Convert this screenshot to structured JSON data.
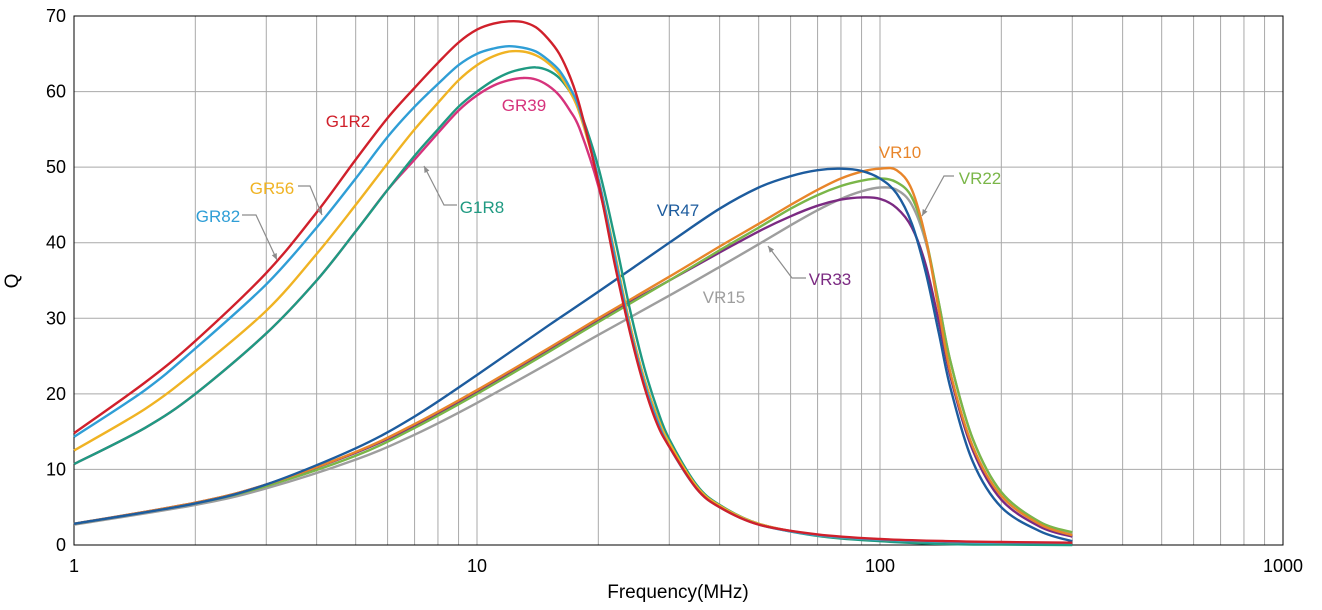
{
  "chart_data": {
    "type": "line",
    "xlabel": "Frequency(MHz)",
    "ylabel": "Q",
    "x_scale": "log",
    "xlim": [
      1,
      1000
    ],
    "ylim": [
      0,
      70
    ],
    "x_ticks": [
      1,
      10,
      100,
      1000
    ],
    "x_tick_labels": [
      "1",
      "10",
      "100",
      "1000"
    ],
    "y_ticks": [
      0,
      10,
      20,
      30,
      40,
      50,
      60,
      70
    ],
    "y_tick_labels": [
      "0",
      "10",
      "20",
      "30",
      "40",
      "50",
      "60",
      "70"
    ],
    "grid": true,
    "series": [
      {
        "name": "G1R2",
        "color": "#d0202b",
        "x": [
          1,
          1.5,
          2,
          3,
          4,
          5,
          6,
          7,
          8,
          9,
          10,
          11,
          12,
          13,
          14,
          15,
          16,
          17,
          18,
          20,
          22,
          24,
          26,
          28,
          30,
          35,
          40,
          50,
          70,
          100,
          150,
          200,
          300
        ],
        "y": [
          14.8,
          21.5,
          27,
          36,
          44,
          51,
          56.5,
          60.5,
          63.8,
          66.5,
          68.2,
          69,
          69.3,
          69.2,
          68.5,
          67,
          65,
          62,
          58,
          48,
          37,
          28,
          21,
          16,
          13,
          7.5,
          5,
          2.7,
          1.4,
          0.8,
          0.5,
          0.4,
          0.3
        ]
      },
      {
        "name": "GR82",
        "color": "#2f9ed6",
        "x": [
          1,
          1.5,
          2,
          3,
          4,
          5,
          6,
          7,
          8,
          9,
          10,
          11,
          12,
          13,
          14,
          15,
          16,
          17,
          18,
          20,
          22,
          24,
          26,
          28,
          30,
          35,
          40,
          50,
          70,
          100,
          150,
          200,
          300
        ],
        "y": [
          14.3,
          20.5,
          26,
          34.5,
          42,
          48.5,
          54,
          58,
          61,
          63.5,
          65,
          65.7,
          66,
          65.8,
          65.3,
          64.2,
          62.8,
          60.5,
          57.5,
          48.5,
          38,
          28.5,
          21.5,
          16.5,
          13,
          7.5,
          5,
          2.7,
          1.3,
          0.7,
          0.4,
          0.3,
          0.3
        ]
      },
      {
        "name": "GR56",
        "color": "#f0b323",
        "x": [
          1,
          1.5,
          2,
          3,
          4,
          5,
          6,
          7,
          8,
          9,
          10,
          11,
          12,
          13,
          14,
          15,
          16,
          17,
          18,
          20,
          22,
          24,
          26,
          28,
          30,
          35,
          40,
          50,
          70,
          100,
          150,
          200,
          300
        ],
        "y": [
          12.5,
          18,
          23,
          31,
          38.5,
          45,
          50.5,
          55,
          58.5,
          61.5,
          63.5,
          64.7,
          65.3,
          65.3,
          64.8,
          63.8,
          62.3,
          60,
          57,
          48.5,
          38.5,
          29,
          22,
          17,
          13.5,
          7.8,
          5.2,
          2.8,
          1.3,
          0.7,
          0.4,
          0.3,
          0.3
        ]
      },
      {
        "name": "GR39",
        "color": "#d6337c",
        "x": [
          1,
          1.5,
          2,
          3,
          4,
          5,
          6,
          7,
          8,
          9,
          10,
          11,
          12,
          13,
          14,
          15,
          16,
          17,
          18,
          20,
          22,
          24,
          26,
          28,
          30,
          35,
          40,
          50,
          70,
          100,
          150,
          200,
          300
        ],
        "y": [
          10.7,
          15.5,
          20,
          28,
          35,
          41.5,
          47,
          51,
          54.5,
          57.5,
          59.5,
          60.8,
          61.5,
          61.8,
          61.6,
          60.8,
          59.5,
          57.5,
          55,
          47.5,
          38,
          29,
          22,
          17,
          13.5,
          7.8,
          5.2,
          2.8,
          1.3,
          0.6,
          0.3,
          0.2,
          0.2
        ]
      },
      {
        "name": "G1R8",
        "color": "#1f9a82",
        "x": [
          1,
          1.5,
          2,
          3,
          4,
          5,
          6,
          7,
          8,
          9,
          10,
          11,
          12,
          13,
          14,
          15,
          16,
          17,
          18,
          20,
          22,
          24,
          26,
          28,
          30,
          35,
          40,
          50,
          70,
          100,
          150,
          200,
          300
        ],
        "y": [
          10.7,
          15.5,
          20,
          28,
          35,
          41.5,
          47,
          51.5,
          55,
          58,
          60,
          61.5,
          62.5,
          63,
          63.2,
          62.8,
          61.8,
          60,
          57.5,
          50,
          40.5,
          31,
          23.5,
          18,
          14,
          8,
          5.3,
          2.8,
          1.2,
          0.5,
          0.1,
          0.05,
          0
        ]
      },
      {
        "name": "VR47",
        "color": "#1d5c9e",
        "x": [
          1,
          2,
          3,
          5,
          7,
          10,
          15,
          20,
          30,
          40,
          50,
          60,
          70,
          80,
          90,
          100,
          110,
          120,
          130,
          140,
          150,
          170,
          200,
          250,
          300
        ],
        "y": [
          2.8,
          5.5,
          8,
          12.8,
          17,
          22.5,
          29,
          33.5,
          40,
          44.5,
          47.3,
          48.8,
          49.6,
          49.8,
          49.5,
          48.5,
          46.5,
          42.5,
          36,
          28,
          20.5,
          11,
          5,
          1.8,
          0.5
        ]
      },
      {
        "name": "VR10",
        "color": "#e8852a",
        "x": [
          1,
          2,
          3,
          5,
          7,
          10,
          15,
          20,
          30,
          40,
          50,
          60,
          70,
          80,
          90,
          100,
          110,
          120,
          130,
          140,
          150,
          170,
          200,
          250,
          300
        ],
        "y": [
          2.8,
          5.6,
          8,
          12.3,
          16,
          20.5,
          26,
          30,
          35.5,
          39.5,
          42.5,
          45,
          47,
          48.5,
          49.4,
          49.8,
          49.6,
          47,
          40.5,
          31,
          22.5,
          13,
          6.5,
          2.7,
          1.3
        ]
      },
      {
        "name": "VR22",
        "color": "#7ab648",
        "x": [
          1,
          2,
          3,
          5,
          7,
          10,
          15,
          20,
          30,
          40,
          50,
          60,
          70,
          80,
          90,
          100,
          110,
          120,
          130,
          140,
          150,
          170,
          200,
          250,
          300
        ],
        "y": [
          2.8,
          5.5,
          7.8,
          11.8,
          15.5,
          20,
          25.5,
          29.5,
          35,
          39,
          42,
          44.5,
          46.3,
          47.5,
          48.2,
          48.5,
          48,
          46,
          40.5,
          32,
          24,
          14,
          7,
          3,
          1.7
        ]
      },
      {
        "name": "VR33",
        "color": "#7b2a82",
        "x": [
          1,
          2,
          3,
          5,
          7,
          10,
          15,
          20,
          30,
          40,
          50,
          60,
          70,
          80,
          90,
          100,
          110,
          120,
          130,
          140,
          150,
          170,
          200,
          250,
          300
        ],
        "y": [
          2.8,
          5.6,
          8,
          12.2,
          15.8,
          20.3,
          25.8,
          29.8,
          35,
          38.7,
          41.5,
          43.5,
          44.9,
          45.7,
          46,
          45.8,
          44.6,
          42,
          37,
          29.5,
          22,
          12.5,
          6,
          2.4,
          1.1
        ]
      },
      {
        "name": "VR15",
        "color": "#9e9e9e",
        "x": [
          1,
          2,
          3,
          5,
          7,
          10,
          15,
          20,
          30,
          40,
          50,
          60,
          70,
          80,
          90,
          100,
          110,
          120,
          130,
          140,
          150,
          170,
          200,
          250,
          300
        ],
        "y": [
          2.7,
          5.3,
          7.5,
          11.3,
          14.6,
          18.8,
          24,
          27.8,
          33,
          36.8,
          39.8,
          42.3,
          44.3,
          45.8,
          46.8,
          47.3,
          47,
          45,
          40,
          32,
          24,
          14,
          7,
          3,
          1.6
        ]
      }
    ],
    "annotations": [
      {
        "text": "G1R2",
        "series": "G1R2",
        "color": "#d0202b"
      },
      {
        "text": "GR82",
        "series": "GR82",
        "color": "#2f9ed6"
      },
      {
        "text": "GR56",
        "series": "GR56",
        "color": "#f0b323"
      },
      {
        "text": "GR39",
        "series": "GR39",
        "color": "#d6337c"
      },
      {
        "text": "G1R8",
        "series": "G1R8",
        "color": "#1f9a82"
      },
      {
        "text": "VR47",
        "series": "VR47",
        "color": "#1d5c9e"
      },
      {
        "text": "VR10",
        "series": "VR10",
        "color": "#e8852a"
      },
      {
        "text": "VR22",
        "series": "VR22",
        "color": "#7ab648"
      },
      {
        "text": "VR33",
        "series": "VR33",
        "color": "#7b2a82"
      },
      {
        "text": "VR15",
        "series": "VR15",
        "color": "#9e9e9e"
      }
    ]
  }
}
